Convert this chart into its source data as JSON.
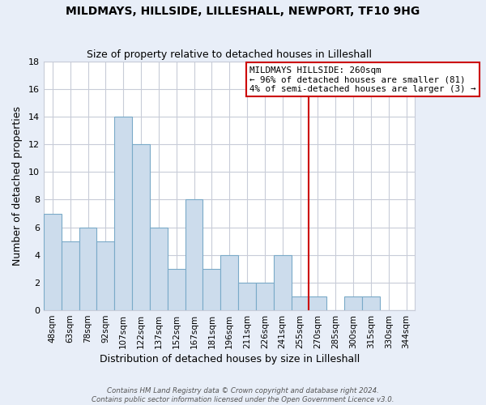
{
  "title": "MILDMAYS, HILLSIDE, LILLESHALL, NEWPORT, TF10 9HG",
  "subtitle": "Size of property relative to detached houses in Lilleshall",
  "xlabel": "Distribution of detached houses by size in Lilleshall",
  "ylabel": "Number of detached properties",
  "bar_labels": [
    "48sqm",
    "63sqm",
    "78sqm",
    "92sqm",
    "107sqm",
    "122sqm",
    "137sqm",
    "152sqm",
    "167sqm",
    "181sqm",
    "196sqm",
    "211sqm",
    "226sqm",
    "241sqm",
    "255sqm",
    "270sqm",
    "285sqm",
    "300sqm",
    "315sqm",
    "330sqm",
    "344sqm"
  ],
  "bar_values": [
    7,
    5,
    6,
    5,
    14,
    12,
    6,
    3,
    8,
    3,
    4,
    2,
    2,
    4,
    1,
    1,
    0,
    1,
    1,
    0,
    0
  ],
  "bar_color": "#ccdcec",
  "bar_edge_color": "#7aaac8",
  "vline_x": 14.5,
  "vline_color": "#cc0000",
  "annotation_title": "MILDMAYS HILLSIDE: 260sqm",
  "annotation_line1": "← 96% of detached houses are smaller (81)",
  "annotation_line2": "4% of semi-detached houses are larger (3) →",
  "annotation_box_facecolor": "white",
  "annotation_box_edgecolor": "#cc0000",
  "ylim": [
    0,
    18
  ],
  "yticks": [
    0,
    2,
    4,
    6,
    8,
    10,
    12,
    14,
    16,
    18
  ],
  "plot_bg": "white",
  "fig_bg": "#e8eef8",
  "grid_color": "#c8ccd8",
  "footnote1": "Contains HM Land Registry data © Crown copyright and database right 2024.",
  "footnote2": "Contains public sector information licensed under the Open Government Licence v3.0."
}
